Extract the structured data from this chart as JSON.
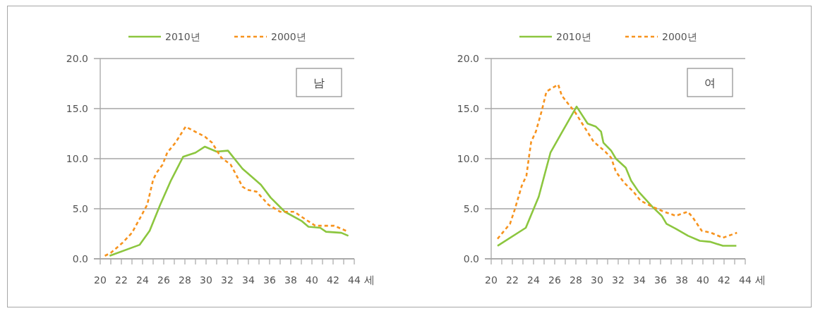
{
  "chart_data": [
    {
      "type": "line",
      "xlabel": "세",
      "annotations": [
        "남"
      ],
      "legend": "top",
      "grid": "y",
      "xlim": [
        20,
        44
      ],
      "ylim": [
        0,
        20
      ],
      "xticks": [
        20,
        {
          "value": 21,
          "label": null
        },
        22,
        {
          "value": 23,
          "label": null
        },
        24,
        {
          "value": 25,
          "label": null
        },
        26,
        {
          "value": 27,
          "label": null
        },
        28,
        {
          "value": 29,
          "label": null
        },
        30,
        {
          "value": 31,
          "label": null
        },
        32,
        {
          "value": 33,
          "label": null
        },
        34,
        {
          "value": 35,
          "label": null
        },
        36,
        {
          "value": 37,
          "label": null
        },
        38,
        {
          "value": 39,
          "label": null
        },
        40,
        {
          "value": 41,
          "label": null
        },
        42,
        {
          "value": 43,
          "label": null
        },
        44
      ],
      "yticks": [
        {
          "value": 0,
          "label": "0.0"
        },
        {
          "value": 5,
          "label": "5.0"
        },
        {
          "value": 10,
          "label": "10.0"
        },
        {
          "value": 15,
          "label": "15.0"
        },
        {
          "value": 20,
          "label": "20.0"
        }
      ],
      "series": [
        {
          "name": "2010년",
          "color": "#8cc63f",
          "line_style": "solid",
          "x": [
            20.89,
            23.73,
            24.67,
            25.67,
            26.67,
            27.84,
            29.0,
            29.89,
            31.0,
            32.07,
            33.44,
            35.18,
            36.11,
            37.44,
            39.0,
            39.67,
            40.78,
            41.33,
            42.78,
            43.44
          ],
          "values": [
            0.3,
            1.4,
            2.8,
            5.4,
            7.8,
            10.2,
            10.6,
            11.2,
            10.7,
            10.8,
            9.0,
            7.4,
            6.1,
            4.7,
            3.8,
            3.2,
            3.1,
            2.7,
            2.6,
            2.3
          ]
        },
        {
          "name": "2000년",
          "color": "#f7931e",
          "line_style": "dashed",
          "x": [
            20.44,
            21.0,
            22.11,
            23.0,
            23.78,
            24.44,
            25.0,
            25.33,
            25.89,
            26.33,
            27.11,
            28.07,
            28.78,
            29.89,
            30.56,
            31.44,
            32.33,
            33.44,
            33.89,
            34.78,
            35.89,
            37.0,
            38.33,
            39.44,
            40.33,
            41.44,
            42.11,
            43.44
          ],
          "values": [
            0.3,
            0.6,
            1.6,
            2.6,
            4.1,
            5.4,
            7.9,
            8.6,
            9.4,
            10.6,
            11.6,
            13.2,
            12.8,
            12.2,
            11.6,
            10.1,
            9.4,
            7.2,
            6.9,
            6.7,
            5.4,
            4.7,
            4.7,
            3.9,
            3.3,
            3.3,
            3.3,
            2.7
          ]
        }
      ]
    },
    {
      "type": "line",
      "xlabel": "세",
      "annotations": [
        "여"
      ],
      "legend": "top",
      "grid": "y",
      "xlim": [
        20,
        44
      ],
      "ylim": [
        0,
        20
      ],
      "xticks": [
        20,
        {
          "value": 21,
          "label": null
        },
        22,
        {
          "value": 23,
          "label": null
        },
        24,
        {
          "value": 25,
          "label": null
        },
        26,
        {
          "value": 27,
          "label": null
        },
        28,
        {
          "value": 29,
          "label": null
        },
        30,
        {
          "value": 31,
          "label": null
        },
        32,
        {
          "value": 33,
          "label": null
        },
        34,
        {
          "value": 35,
          "label": null
        },
        36,
        {
          "value": 37,
          "label": null
        },
        38,
        {
          "value": 39,
          "label": null
        },
        40,
        {
          "value": 41,
          "label": null
        },
        42,
        {
          "value": 43,
          "label": null
        },
        44
      ],
      "yticks": [
        {
          "value": 0,
          "label": "0.0"
        },
        {
          "value": 5,
          "label": "5.0"
        },
        {
          "value": 10,
          "label": "10.0"
        },
        {
          "value": 15,
          "label": "15.0"
        },
        {
          "value": 20,
          "label": "20.0"
        }
      ],
      "series": [
        {
          "name": "2010년",
          "color": "#8cc63f",
          "line_style": "solid",
          "x": [
            20.6,
            23.27,
            24.49,
            25.6,
            26.56,
            28.07,
            29.11,
            29.89,
            30.38,
            30.6,
            31.33,
            31.78,
            32.71,
            33.22,
            33.93,
            35.22,
            36.11,
            36.56,
            37.44,
            38.6,
            39.71,
            40.67,
            41.89,
            43.16
          ],
          "values": [
            1.3,
            3.1,
            6.2,
            10.6,
            12.4,
            15.2,
            13.5,
            13.2,
            12.7,
            11.6,
            10.8,
            10.0,
            9.1,
            7.8,
            6.7,
            5.2,
            4.3,
            3.5,
            3.0,
            2.3,
            1.8,
            1.7,
            1.3,
            1.3
          ]
        },
        {
          "name": "2000년",
          "color": "#f7931e",
          "line_style": "dashed",
          "x": [
            20.6,
            21.78,
            22.22,
            22.89,
            23.33,
            23.56,
            23.78,
            24.22,
            24.78,
            25.22,
            25.67,
            26.33,
            26.67,
            27.33,
            27.89,
            28.78,
            29.67,
            30.78,
            31.33,
            31.78,
            32.56,
            33.44,
            34.11,
            35.22,
            36.33,
            37.44,
            38.56,
            39.0,
            39.89,
            40.78,
            41.89,
            43.22
          ],
          "values": [
            2.0,
            3.5,
            4.9,
            7.3,
            8.3,
            10.1,
            11.7,
            12.7,
            14.8,
            16.7,
            17.0,
            17.4,
            16.3,
            15.4,
            14.7,
            13.2,
            11.7,
            10.7,
            10.1,
            8.7,
            7.6,
            6.7,
            5.8,
            5.2,
            4.7,
            4.3,
            4.7,
            4.2,
            2.8,
            2.6,
            2.1,
            2.6
          ]
        }
      ]
    }
  ]
}
